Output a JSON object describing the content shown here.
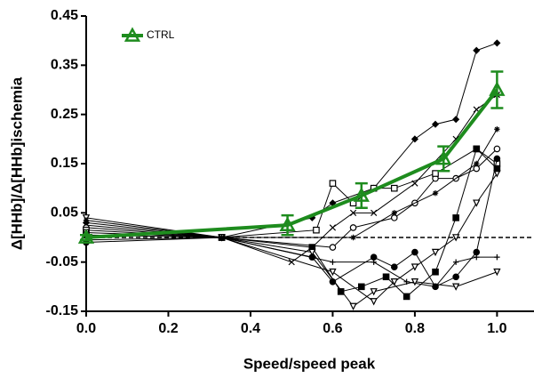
{
  "chart_data": {
    "type": "line",
    "xlabel": "Speed/speed peak",
    "ylabel": "Δ[HHb]/Δ[HHb]ischemia",
    "xlim": [
      0,
      1.09
    ],
    "ylim": [
      -0.15,
      0.45
    ],
    "xticks": [
      {
        "value": 0,
        "label": "0.0"
      },
      0.2,
      0.4,
      0.6,
      0.8,
      {
        "value": 1,
        "label": "1.0"
      }
    ],
    "yticks": [
      -0.15,
      -0.05,
      0.05,
      0.15,
      0.25,
      0.35,
      0.45
    ],
    "hline": 0,
    "legend": "upper left",
    "series": [
      {
        "marker": "diamond",
        "color": "#000000",
        "x": [
          0,
          0.33,
          0.55,
          0.6,
          0.7,
          0.8,
          0.85,
          0.9,
          0.95,
          1.0
        ],
        "values": [
          0.03,
          0,
          0.04,
          0.07,
          0.1,
          0.2,
          0.23,
          0.24,
          0.38,
          0.395
        ]
      },
      {
        "marker": "x",
        "color": "#000000",
        "x": [
          0,
          0.33,
          0.5,
          0.55,
          0.6,
          0.65,
          0.7,
          0.8,
          0.9,
          0.95,
          1.0
        ],
        "values": [
          0.025,
          0,
          -0.05,
          -0.02,
          0.02,
          0.05,
          0.05,
          0.11,
          0.2,
          0.26,
          0.29
        ]
      },
      {
        "marker": "circle",
        "color": "#000000",
        "x": [
          0,
          0.33,
          0.6,
          0.65,
          0.75,
          0.8,
          0.85,
          0.9,
          0.95,
          1.0
        ],
        "values": [
          0.02,
          0,
          -0.02,
          0.02,
          0.04,
          0.07,
          0.12,
          0.12,
          0.14,
          0.18
        ]
      },
      {
        "marker": "square",
        "color": "#000000",
        "x": [
          0,
          0.33,
          0.56,
          0.6,
          0.65,
          0.7,
          0.75,
          0.85,
          0.95,
          1.0
        ],
        "values": [
          0.015,
          0,
          0.015,
          0.11,
          0.07,
          0.1,
          0.1,
          0.13,
          0.18,
          0.15
        ]
      },
      {
        "marker": "tri-down",
        "color": "#000000",
        "x": [
          0,
          0.33,
          0.6,
          0.7,
          0.75,
          0.8,
          0.85,
          0.9,
          0.95,
          1.0
        ],
        "values": [
          0.01,
          0,
          -0.07,
          -0.13,
          -0.09,
          -0.06,
          -0.03,
          0,
          0.07,
          0.13
        ]
      },
      {
        "marker": "filled-square",
        "color": "#000000",
        "x": [
          0,
          0.33,
          0.55,
          0.62,
          0.67,
          0.73,
          0.78,
          0.85,
          0.9,
          0.95,
          1.0
        ],
        "values": [
          0.005,
          0,
          -0.02,
          -0.11,
          -0.1,
          -0.08,
          -0.12,
          -0.07,
          0.04,
          0.18,
          0.14
        ]
      },
      {
        "marker": "plus",
        "color": "#000000",
        "x": [
          0,
          0.33,
          0.6,
          0.7,
          0.78,
          0.85,
          0.9,
          0.95,
          1.0
        ],
        "values": [
          -0.005,
          0,
          -0.05,
          -0.05,
          -0.09,
          -0.1,
          -0.05,
          -0.04,
          -0.04
        ]
      },
      {
        "marker": "dot",
        "color": "#000000",
        "x": [
          0,
          0.33,
          0.55,
          0.6,
          0.7,
          0.75,
          0.8,
          0.85,
          0.9,
          0.95,
          1.0
        ],
        "values": [
          -0.01,
          0,
          -0.04,
          -0.09,
          -0.04,
          -0.06,
          -0.03,
          -0.1,
          -0.08,
          -0.03,
          0.16
        ]
      },
      {
        "marker": "tri-down",
        "color": "#000000",
        "x": [
          0,
          0.33,
          0.55,
          0.65,
          0.7,
          0.8,
          0.9,
          1.0
        ],
        "values": [
          0.04,
          0,
          -0.03,
          -0.14,
          -0.11,
          -0.09,
          -0.1,
          -0.07
        ]
      },
      {
        "marker": "star",
        "color": "#000000",
        "x": [
          0,
          0.33,
          0.65,
          0.75,
          0.85,
          0.95,
          1.0
        ],
        "values": [
          0.035,
          0,
          0.0,
          0.05,
          0.09,
          0.15,
          0.22
        ]
      },
      {
        "name": "CTRL",
        "marker": "triangle",
        "color": "#1e8c1e",
        "bold": true,
        "x": [
          0,
          0.49,
          0.67,
          0.87,
          1.0
        ],
        "values": [
          0.0,
          0.025,
          0.085,
          0.16,
          0.3
        ],
        "errors": [
          0.005,
          0.02,
          0.025,
          0.025,
          0.037
        ]
      }
    ]
  }
}
